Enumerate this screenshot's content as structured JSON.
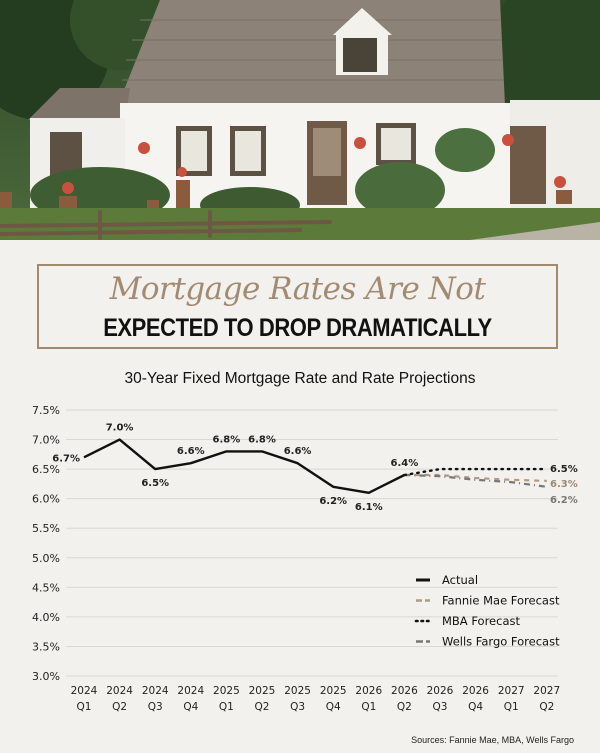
{
  "header": {
    "title_line1": "Mortgage Rates Are Not",
    "title_line2": "EXPECTED TO DROP DRAMATICALLY"
  },
  "colors": {
    "background": "#f2f1ed",
    "accent": "#a38b73",
    "actual": "#111111",
    "fannie": "#b09a80",
    "mba": "#111111",
    "wells": "#777777"
  },
  "source": "Sources: Fannie Mae, MBA, Wells Fargo",
  "chart_data": {
    "type": "line",
    "title": "30-Year Fixed Mortgage Rate and Rate Projections",
    "xlabel": "",
    "ylabel": "",
    "ylim": [
      3.0,
      7.5
    ],
    "yticks": [
      "7.5%",
      "7.0%",
      "6.5%",
      "6.0%",
      "5.5%",
      "5.0%",
      "4.5%",
      "4.0%",
      "3.5%",
      "3.0%"
    ],
    "categories": [
      "2024 Q1",
      "2024 Q2",
      "2024 Q3",
      "2024 Q4",
      "2025 Q1",
      "2025 Q2",
      "2025 Q3",
      "2025 Q4",
      "2026 Q1",
      "2026 Q2",
      "2026 Q3",
      "2026 Q4",
      "2027 Q1",
      "2027 Q2"
    ],
    "category_years": [
      "2024",
      "2024",
      "2024",
      "2024",
      "2025",
      "2025",
      "2025",
      "2025",
      "2026",
      "2026",
      "2026",
      "2026",
      "2027",
      "2027"
    ],
    "category_quarters": [
      "Q1",
      "Q2",
      "Q3",
      "Q4",
      "Q1",
      "Q2",
      "Q3",
      "Q4",
      "Q1",
      "Q2",
      "Q3",
      "Q4",
      "Q1",
      "Q2"
    ],
    "grid": true,
    "legend_position": "bottom-right",
    "series": [
      {
        "name": "Actual",
        "values": [
          6.7,
          7.0,
          6.5,
          6.6,
          6.8,
          6.8,
          6.6,
          6.2,
          6.1,
          6.4,
          null,
          null,
          null,
          null
        ],
        "labels": [
          "6.7%",
          "7.0%",
          "6.5%",
          "6.6%",
          "6.8%",
          "6.8%",
          "6.6%",
          "6.2%",
          "6.1%",
          "6.4%",
          "",
          "",
          "",
          ""
        ]
      },
      {
        "name": "Fannie Mae Forecast",
        "values": [
          null,
          null,
          null,
          null,
          null,
          null,
          null,
          null,
          null,
          6.4,
          6.4,
          6.35,
          6.32,
          6.3
        ],
        "labels": [
          "",
          "",
          "",
          "",
          "",
          "",
          "",
          "",
          "",
          "",
          "",
          "",
          "",
          "6.3%"
        ]
      },
      {
        "name": "MBA Forecast",
        "values": [
          null,
          null,
          null,
          null,
          null,
          null,
          null,
          null,
          null,
          6.4,
          6.5,
          6.5,
          6.5,
          6.5
        ],
        "labels": [
          "",
          "",
          "",
          "",
          "",
          "",
          "",
          "",
          "",
          "",
          "",
          "",
          "",
          "6.5%"
        ]
      },
      {
        "name": "Wells Fargo Forecast",
        "values": [
          null,
          null,
          null,
          null,
          null,
          null,
          null,
          null,
          null,
          6.4,
          6.38,
          6.32,
          6.28,
          6.2
        ],
        "labels": [
          "",
          "",
          "",
          "",
          "",
          "",
          "",
          "",
          "",
          "",
          "",
          "",
          "",
          "6.2%"
        ]
      }
    ]
  }
}
